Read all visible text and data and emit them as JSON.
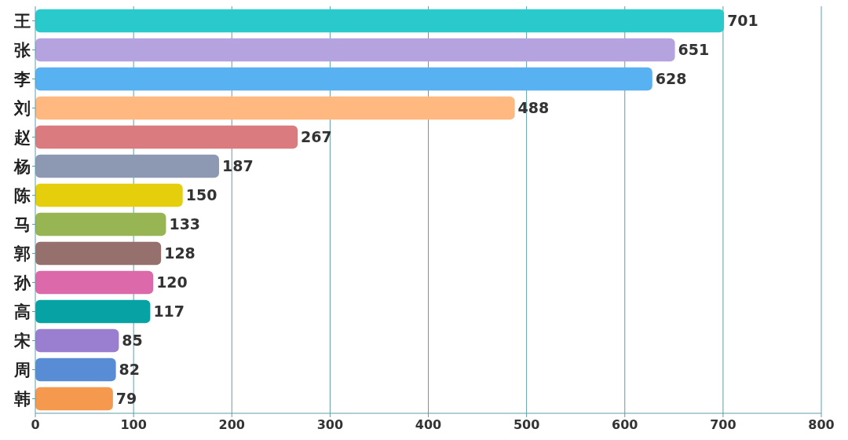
{
  "chart_data": {
    "type": "bar",
    "orientation": "horizontal",
    "categories": [
      "王",
      "张",
      "李",
      "刘",
      "赵",
      "杨",
      "陈",
      "马",
      "郭",
      "孙",
      "高",
      "宋",
      "周",
      "韩"
    ],
    "values": [
      701,
      651,
      628,
      488,
      267,
      187,
      150,
      133,
      128,
      120,
      117,
      85,
      82,
      79
    ],
    "colors": [
      "#2ac9cb",
      "#b5a3e0",
      "#58b1f0",
      "#ffb980",
      "#da7b7f",
      "#8d98b3",
      "#e5cf0d",
      "#97b552",
      "#95706d",
      "#dc69aa",
      "#07a2a4",
      "#9a7fd1",
      "#588dd5",
      "#f5994e"
    ],
    "xlim": [
      0,
      800
    ],
    "xticks": [
      0,
      100,
      200,
      300,
      400,
      500,
      600,
      700,
      800
    ],
    "grid": "x",
    "data_labels": true
  }
}
